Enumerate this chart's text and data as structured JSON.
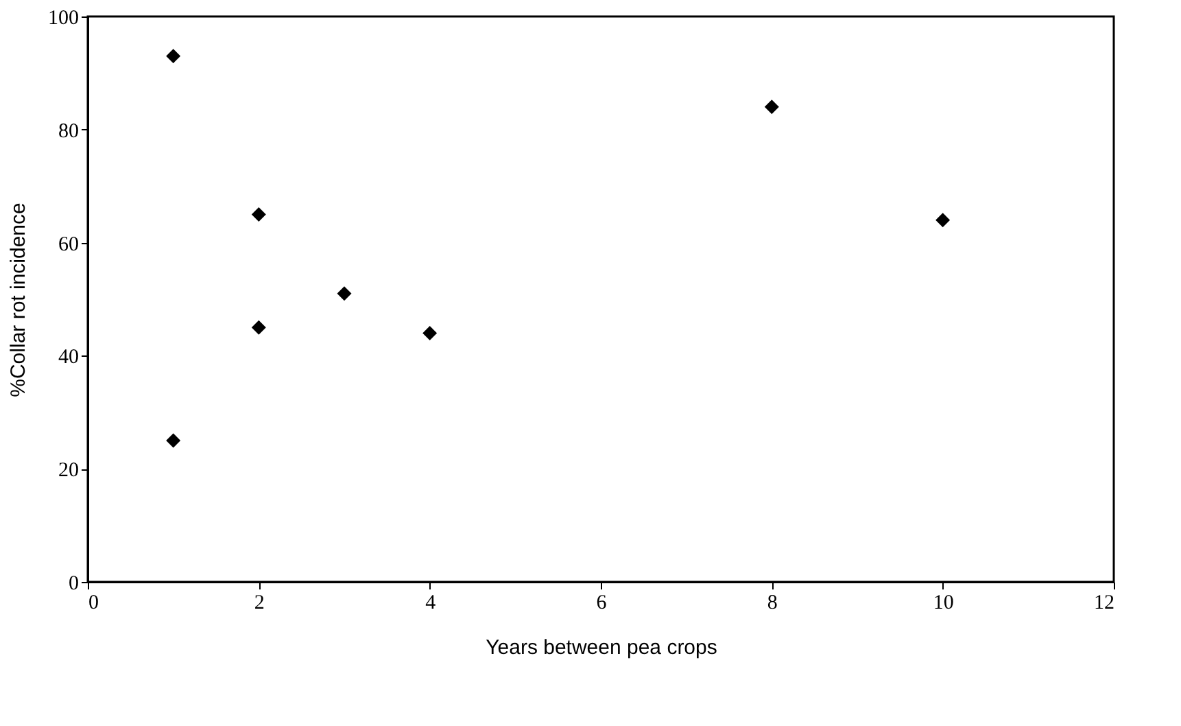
{
  "chart_data": {
    "type": "scatter",
    "xlabel": "Years between pea crops",
    "ylabel": "%Collar rot incidence",
    "x": [
      1,
      1,
      2,
      2,
      3,
      4,
      8,
      10
    ],
    "values": [
      93,
      25,
      65,
      45,
      51,
      44,
      84,
      64
    ],
    "color": "#000000",
    "marker": "diamond",
    "xlim": [
      0,
      12
    ],
    "xticks": [
      0,
      2,
      4,
      6,
      8,
      10,
      12
    ],
    "ylim": [
      0,
      100
    ],
    "yticks": [
      0,
      20,
      40,
      60,
      80,
      100
    ],
    "grid": false
  }
}
